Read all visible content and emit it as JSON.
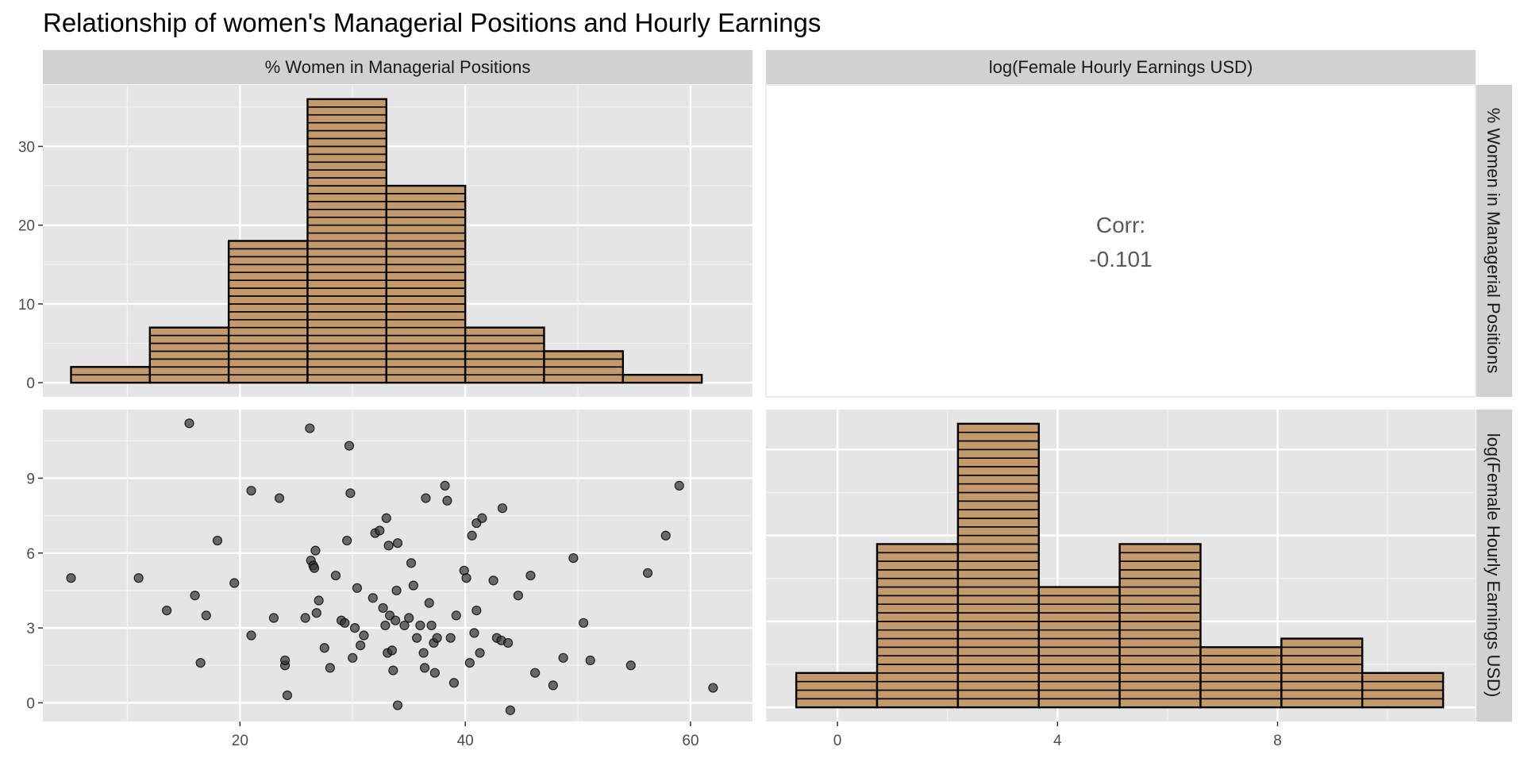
{
  "chart_data": {
    "type": "scatter-matrix",
    "title": "Relationship of women's Managerial Positions and Hourly Earnings",
    "variables": [
      "% Women in Managerial Positions",
      "log(Female Hourly Earnings USD)"
    ],
    "colors": {
      "bar_fill": "#c49a6c",
      "bar_stroke": "#000000",
      "panel_bg": "#e5e5e5",
      "strip_bg": "#d1d1d1",
      "point": "#333333"
    },
    "hist_managerial": {
      "bins": [
        {
          "x0": 5,
          "x1": 12,
          "count": 2
        },
        {
          "x0": 12,
          "x1": 19,
          "count": 7
        },
        {
          "x0": 19,
          "x1": 26,
          "count": 18
        },
        {
          "x0": 26,
          "x1": 33,
          "count": 36
        },
        {
          "x0": 33,
          "x1": 40,
          "count": 25
        },
        {
          "x0": 40,
          "x1": 47,
          "count": 7
        },
        {
          "x0": 47,
          "x1": 54,
          "count": 4
        },
        {
          "x0": 54,
          "x1": 61,
          "count": 1
        }
      ],
      "y_ticks": [
        0,
        10,
        20,
        30
      ],
      "ylim": [
        -1.8,
        37.8
      ]
    },
    "correlation": {
      "label": "Corr:",
      "value": "-0.101"
    },
    "scatter": {
      "xlim": [
        2.5,
        65.5
      ],
      "ylim": [
        -0.75,
        11.75
      ],
      "x_ticks": [
        20,
        40,
        60
      ],
      "y_ticks": [
        0,
        3,
        6,
        9
      ],
      "points": [
        {
          "x": 5,
          "y": 5.0
        },
        {
          "x": 11,
          "y": 5.0
        },
        {
          "x": 13.5,
          "y": 3.7
        },
        {
          "x": 15.5,
          "y": 11.2
        },
        {
          "x": 16,
          "y": 4.3
        },
        {
          "x": 16.5,
          "y": 1.6
        },
        {
          "x": 17,
          "y": 3.5
        },
        {
          "x": 18,
          "y": 6.5
        },
        {
          "x": 19.5,
          "y": 4.8
        },
        {
          "x": 21,
          "y": 8.5
        },
        {
          "x": 21,
          "y": 2.7
        },
        {
          "x": 23,
          "y": 3.4
        },
        {
          "x": 23.5,
          "y": 8.2
        },
        {
          "x": 24,
          "y": 1.5
        },
        {
          "x": 24,
          "y": 1.7
        },
        {
          "x": 24.2,
          "y": 0.3
        },
        {
          "x": 25.8,
          "y": 3.4
        },
        {
          "x": 26.2,
          "y": 11.0
        },
        {
          "x": 26.3,
          "y": 5.7
        },
        {
          "x": 26.5,
          "y": 5.5
        },
        {
          "x": 26.6,
          "y": 5.4
        },
        {
          "x": 26.7,
          "y": 6.1
        },
        {
          "x": 26.8,
          "y": 3.6
        },
        {
          "x": 27,
          "y": 4.1
        },
        {
          "x": 27.5,
          "y": 2.2
        },
        {
          "x": 28,
          "y": 1.4
        },
        {
          "x": 28.5,
          "y": 5.1
        },
        {
          "x": 29,
          "y": 3.3
        },
        {
          "x": 29.3,
          "y": 3.2
        },
        {
          "x": 29.5,
          "y": 6.5
        },
        {
          "x": 29.7,
          "y": 10.3
        },
        {
          "x": 29.8,
          "y": 8.4
        },
        {
          "x": 30,
          "y": 1.8
        },
        {
          "x": 30.2,
          "y": 3.0
        },
        {
          "x": 30.4,
          "y": 4.6
        },
        {
          "x": 30.7,
          "y": 2.3
        },
        {
          "x": 31,
          "y": 2.7
        },
        {
          "x": 31.8,
          "y": 4.2
        },
        {
          "x": 32,
          "y": 6.8
        },
        {
          "x": 32.4,
          "y": 6.9
        },
        {
          "x": 32.7,
          "y": 3.8
        },
        {
          "x": 32.9,
          "y": 3.1
        },
        {
          "x": 33,
          "y": 7.4
        },
        {
          "x": 33.1,
          "y": 2.0
        },
        {
          "x": 33.2,
          "y": 6.3
        },
        {
          "x": 33.3,
          "y": 3.5
        },
        {
          "x": 33.5,
          "y": 2.1
        },
        {
          "x": 33.6,
          "y": 1.3
        },
        {
          "x": 33.8,
          "y": 3.3
        },
        {
          "x": 33.9,
          "y": 4.5
        },
        {
          "x": 34,
          "y": 6.4
        },
        {
          "x": 34,
          "y": -0.1
        },
        {
          "x": 34.6,
          "y": 3.1
        },
        {
          "x": 35,
          "y": 3.4
        },
        {
          "x": 35.2,
          "y": 5.6
        },
        {
          "x": 35.4,
          "y": 4.7
        },
        {
          "x": 35.7,
          "y": 2.6
        },
        {
          "x": 36,
          "y": 3.1
        },
        {
          "x": 36.3,
          "y": 2.0
        },
        {
          "x": 36.4,
          "y": 1.4
        },
        {
          "x": 36.5,
          "y": 8.2
        },
        {
          "x": 36.8,
          "y": 4.0
        },
        {
          "x": 37,
          "y": 3.1
        },
        {
          "x": 37.2,
          "y": 2.4
        },
        {
          "x": 37.3,
          "y": 1.2
        },
        {
          "x": 37.5,
          "y": 2.6
        },
        {
          "x": 38.2,
          "y": 8.7
        },
        {
          "x": 38.4,
          "y": 8.1
        },
        {
          "x": 38.7,
          "y": 2.6
        },
        {
          "x": 39,
          "y": 0.8
        },
        {
          "x": 39.2,
          "y": 3.5
        },
        {
          "x": 39.9,
          "y": 5.3
        },
        {
          "x": 40.1,
          "y": 5.0
        },
        {
          "x": 40.4,
          "y": 1.6
        },
        {
          "x": 40.6,
          "y": 6.7
        },
        {
          "x": 40.8,
          "y": 2.8
        },
        {
          "x": 41,
          "y": 3.7
        },
        {
          "x": 41,
          "y": 7.2
        },
        {
          "x": 41.3,
          "y": 2.0
        },
        {
          "x": 41.5,
          "y": 7.4
        },
        {
          "x": 42.5,
          "y": 4.9
        },
        {
          "x": 42.8,
          "y": 2.6
        },
        {
          "x": 43.2,
          "y": 2.5
        },
        {
          "x": 43.3,
          "y": 7.8
        },
        {
          "x": 43.8,
          "y": 2.4
        },
        {
          "x": 44,
          "y": -0.3
        },
        {
          "x": 44.7,
          "y": 4.3
        },
        {
          "x": 45.8,
          "y": 5.1
        },
        {
          "x": 46.2,
          "y": 1.2
        },
        {
          "x": 47.8,
          "y": 0.7
        },
        {
          "x": 48.7,
          "y": 1.8
        },
        {
          "x": 49.6,
          "y": 5.8
        },
        {
          "x": 50.5,
          "y": 3.2
        },
        {
          "x": 51.1,
          "y": 1.7
        },
        {
          "x": 54.7,
          "y": 1.5
        },
        {
          "x": 56.2,
          "y": 5.2
        },
        {
          "x": 57.8,
          "y": 6.7
        },
        {
          "x": 59,
          "y": 8.7
        },
        {
          "x": 62,
          "y": 0.6
        }
      ]
    },
    "hist_earnings": {
      "bins": [
        {
          "x0": -0.75,
          "x1": 0.72,
          "count": 4
        },
        {
          "x0": 0.72,
          "x1": 2.19,
          "count": 19
        },
        {
          "x0": 2.19,
          "x1": 3.66,
          "count": 33
        },
        {
          "x0": 3.66,
          "x1": 5.13,
          "count": 14
        },
        {
          "x0": 5.13,
          "x1": 6.6,
          "count": 19
        },
        {
          "x0": 6.6,
          "x1": 8.07,
          "count": 7
        },
        {
          "x0": 8.07,
          "x1": 9.54,
          "count": 8
        },
        {
          "x0": 9.54,
          "x1": 11.01,
          "count": 4
        }
      ],
      "x_ticks": [
        0,
        4,
        8
      ],
      "xlim": [
        -1.3,
        11.6
      ],
      "ylim": [
        -1.65,
        34.65
      ]
    }
  }
}
